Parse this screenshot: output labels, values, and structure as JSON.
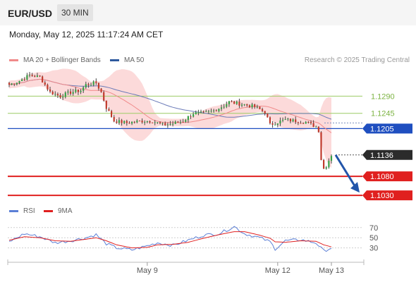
{
  "header": {
    "pair": "EUR/USD",
    "timeframe": "30 MIN",
    "datetime": "Monday, May 12, 2025 11:17:24 AM CET",
    "credit": "Research © 2025 Trading Central"
  },
  "legend": [
    {
      "label": "MA 20 + Bollinger Bands",
      "color": "#f08a8a"
    },
    {
      "label": "MA 50",
      "color": "#2e5a9e"
    }
  ],
  "rsi_legend": [
    {
      "label": "RSI",
      "color": "#5b7fd6"
    },
    {
      "label": "9MA",
      "color": "#e02020"
    }
  ],
  "chart_data": [
    {
      "type": "candlestick",
      "title": "EUR/USD",
      "ylim": [
        1.101,
        1.1335
      ],
      "x_labels": [
        {
          "label": "May 9",
          "index": 54
        },
        {
          "label": "May 12",
          "index": 105
        },
        {
          "label": "May 13",
          "index": 126
        }
      ],
      "levels": [
        {
          "value": 1.129,
          "label": "1.1290",
          "kind": "resistance-minor",
          "color": "#9ccc65"
        },
        {
          "value": 1.1245,
          "label": "1.1245",
          "kind": "resistance-minor",
          "color": "#9ccc65"
        },
        {
          "value": 1.1205,
          "label": "1.1205",
          "kind": "pivot",
          "color": "#1f4fc0"
        },
        {
          "value": 1.1136,
          "label": "1.1136",
          "kind": "last-price",
          "color": "#222222"
        },
        {
          "value": 1.108,
          "label": "1.1080",
          "kind": "target",
          "color": "#e0201f"
        },
        {
          "value": 1.103,
          "label": "1.1030",
          "kind": "target",
          "color": "#e0201f"
        }
      ],
      "forecast_arrow": {
        "from": [
          1.1136
        ],
        "to": [
          1.103
        ],
        "color": "#2255aa"
      },
      "close_keypoints": [
        [
          0,
          1.132
        ],
        [
          4,
          1.133
        ],
        [
          8,
          1.1345
        ],
        [
          12,
          1.134
        ],
        [
          16,
          1.13
        ],
        [
          20,
          1.129
        ],
        [
          24,
          1.13
        ],
        [
          28,
          1.1305
        ],
        [
          30,
          1.132
        ],
        [
          34,
          1.1325
        ],
        [
          36,
          1.13
        ],
        [
          38,
          1.126
        ],
        [
          41,
          1.1225
        ],
        [
          46,
          1.122
        ],
        [
          52,
          1.1225
        ],
        [
          56,
          1.1225
        ],
        [
          60,
          1.1215
        ],
        [
          64,
          1.1218
        ],
        [
          68,
          1.1225
        ],
        [
          72,
          1.1245
        ],
        [
          76,
          1.1245
        ],
        [
          80,
          1.1252
        ],
        [
          84,
          1.1265
        ],
        [
          86,
          1.1275
        ],
        [
          88,
          1.1272
        ],
        [
          92,
          1.1268
        ],
        [
          96,
          1.1262
        ],
        [
          100,
          1.1248
        ],
        [
          102,
          1.1215
        ],
        [
          104,
          1.122
        ],
        [
          108,
          1.1228
        ],
        [
          112,
          1.1225
        ],
        [
          116,
          1.1222
        ],
        [
          120,
          1.121
        ],
        [
          121,
          1.12
        ],
        [
          122,
          1.1125
        ],
        [
          123,
          1.11
        ],
        [
          124,
          1.1108
        ],
        [
          125,
          1.1122
        ],
        [
          126,
          1.1136
        ]
      ]
    },
    {
      "type": "line",
      "title": "RSI",
      "ylim": [
        10,
        85
      ],
      "y_ticks": [
        70,
        50,
        30
      ],
      "series": [
        {
          "name": "RSI",
          "color": "#5b7fd6",
          "keypoints": [
            [
              0,
              42
            ],
            [
              6,
              58
            ],
            [
              12,
              52
            ],
            [
              18,
              40
            ],
            [
              24,
              44
            ],
            [
              30,
              50
            ],
            [
              34,
              56
            ],
            [
              38,
              38
            ],
            [
              42,
              30
            ],
            [
              48,
              26
            ],
            [
              54,
              34
            ],
            [
              58,
              40
            ],
            [
              64,
              35
            ],
            [
              70,
              45
            ],
            [
              76,
              55
            ],
            [
              82,
              58
            ],
            [
              88,
              72
            ],
            [
              92,
              58
            ],
            [
              98,
              50
            ],
            [
              102,
              42
            ],
            [
              104,
              28
            ],
            [
              108,
              44
            ],
            [
              114,
              46
            ],
            [
              120,
              40
            ],
            [
              123,
              24
            ],
            [
              126,
              30
            ]
          ]
        },
        {
          "name": "9MA",
          "color": "#e02020",
          "keypoints": [
            [
              0,
              45
            ],
            [
              6,
              52
            ],
            [
              12,
              50
            ],
            [
              18,
              44
            ],
            [
              24,
              43
            ],
            [
              30,
              47
            ],
            [
              34,
              50
            ],
            [
              38,
              44
            ],
            [
              42,
              36
            ],
            [
              48,
              30
            ],
            [
              54,
              31
            ],
            [
              58,
              36
            ],
            [
              64,
              37
            ],
            [
              70,
              41
            ],
            [
              76,
              49
            ],
            [
              82,
              56
            ],
            [
              88,
              62
            ],
            [
              92,
              62
            ],
            [
              98,
              55
            ],
            [
              102,
              49
            ],
            [
              104,
              42
            ],
            [
              108,
              41
            ],
            [
              114,
              44
            ],
            [
              120,
              43
            ],
            [
              123,
              36
            ],
            [
              126,
              32
            ]
          ]
        }
      ]
    }
  ]
}
